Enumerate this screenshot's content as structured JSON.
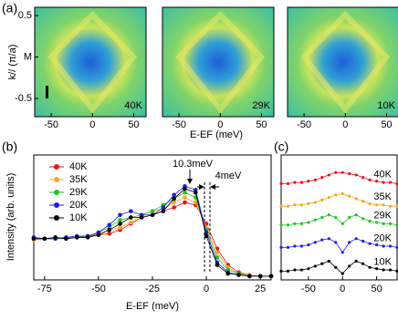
{
  "chart_data": [
    {
      "type": "heatmap",
      "label": "(a)",
      "xlabel": "E-EF (meV)",
      "ylabel": "k// (π/a)",
      "panels": [
        "40K",
        "29K",
        "10K"
      ],
      "xlim": [
        -70,
        65
      ],
      "xticks": [
        -50,
        0,
        50
      ],
      "ylim": [
        -0.72,
        0.6
      ],
      "yticks": [
        0.5,
        {
          "value": 0,
          "label": "M"
        },
        -0.5
      ]
    },
    {
      "type": "scatter-line",
      "label": "(b)",
      "xlabel": "E-EF (meV)",
      "ylabel": "Intensity (arb. units)",
      "annotations": [
        "10.3meV",
        "4meV"
      ],
      "xlim": [
        -80,
        30
      ],
      "xticks": [
        -75,
        -50,
        -25,
        0,
        25
      ],
      "ylim": [
        0,
        1
      ],
      "x": [
        -80,
        -75,
        -70,
        -65,
        -60,
        -55,
        -50,
        -45,
        -40,
        -35,
        -30,
        -25,
        -20,
        -15,
        -10,
        -5,
        0,
        5,
        10,
        15,
        20,
        25,
        30
      ],
      "series": [
        {
          "name": "40K",
          "color": "#e8141c",
          "values": [
            0.33,
            0.33,
            0.33,
            0.34,
            0.34,
            0.35,
            0.36,
            0.37,
            0.4,
            0.45,
            0.5,
            0.52,
            0.55,
            0.58,
            0.62,
            0.6,
            0.45,
            0.25,
            0.12,
            0.06,
            0.04,
            0.03,
            0.03
          ]
        },
        {
          "name": "35K",
          "color": "#f5a623",
          "values": [
            0.32,
            0.33,
            0.33,
            0.34,
            0.34,
            0.35,
            0.37,
            0.4,
            0.42,
            0.46,
            0.52,
            0.55,
            0.57,
            0.62,
            0.66,
            0.62,
            0.42,
            0.22,
            0.1,
            0.05,
            0.04,
            0.03,
            0.03
          ]
        },
        {
          "name": "29K",
          "color": "#22c422",
          "values": [
            0.33,
            0.33,
            0.33,
            0.33,
            0.34,
            0.35,
            0.38,
            0.42,
            0.48,
            0.5,
            0.52,
            0.55,
            0.6,
            0.65,
            0.7,
            0.66,
            0.4,
            0.18,
            0.08,
            0.05,
            0.03,
            0.03,
            0.03
          ]
        },
        {
          "name": "20K",
          "color": "#1f1fe0",
          "values": [
            0.34,
            0.33,
            0.33,
            0.34,
            0.35,
            0.35,
            0.38,
            0.44,
            0.52,
            0.55,
            0.52,
            0.52,
            0.58,
            0.68,
            0.75,
            0.72,
            0.38,
            0.14,
            0.06,
            0.04,
            0.03,
            0.03,
            0.03
          ]
        },
        {
          "name": "10K",
          "color": "#000000",
          "values": [
            0.33,
            0.33,
            0.34,
            0.33,
            0.34,
            0.34,
            0.36,
            0.4,
            0.45,
            0.5,
            0.5,
            0.52,
            0.55,
            0.65,
            0.73,
            0.7,
            0.35,
            0.12,
            0.05,
            0.04,
            0.03,
            0.03,
            0.03
          ]
        }
      ]
    },
    {
      "type": "scatter-line",
      "label": "(c)",
      "xlim": [
        -90,
        80
      ],
      "xticks": [
        -50,
        0,
        50
      ],
      "ylim": [
        0,
        1
      ],
      "x": [
        -90,
        -80,
        -70,
        -60,
        -50,
        -40,
        -30,
        -20,
        -10,
        0,
        10,
        20,
        30,
        40,
        50,
        60,
        70,
        80
      ],
      "series": [
        {
          "name": "40K",
          "color": "#e8141c",
          "values": [
            0.77,
            0.77,
            0.78,
            0.78,
            0.79,
            0.8,
            0.82,
            0.84,
            0.86,
            0.86,
            0.85,
            0.84,
            0.82,
            0.8,
            0.79,
            0.78,
            0.78,
            0.77
          ]
        },
        {
          "name": "35K",
          "color": "#f5a623",
          "values": [
            0.59,
            0.59,
            0.6,
            0.6,
            0.61,
            0.62,
            0.64,
            0.66,
            0.68,
            0.69,
            0.67,
            0.65,
            0.63,
            0.61,
            0.6,
            0.6,
            0.59,
            0.59
          ]
        },
        {
          "name": "29K",
          "color": "#22c422",
          "values": [
            0.44,
            0.44,
            0.45,
            0.45,
            0.46,
            0.48,
            0.5,
            0.52,
            0.5,
            0.45,
            0.5,
            0.52,
            0.49,
            0.47,
            0.46,
            0.45,
            0.45,
            0.44
          ]
        },
        {
          "name": "20K",
          "color": "#1f1fe0",
          "values": [
            0.26,
            0.26,
            0.27,
            0.27,
            0.28,
            0.3,
            0.32,
            0.33,
            0.3,
            0.22,
            0.3,
            0.33,
            0.31,
            0.29,
            0.28,
            0.27,
            0.27,
            0.26
          ]
        },
        {
          "name": "10K",
          "color": "#000000",
          "values": [
            0.07,
            0.07,
            0.08,
            0.08,
            0.09,
            0.11,
            0.13,
            0.15,
            0.1,
            0.05,
            0.11,
            0.15,
            0.13,
            0.1,
            0.09,
            0.08,
            0.08,
            0.07
          ]
        }
      ]
    }
  ]
}
